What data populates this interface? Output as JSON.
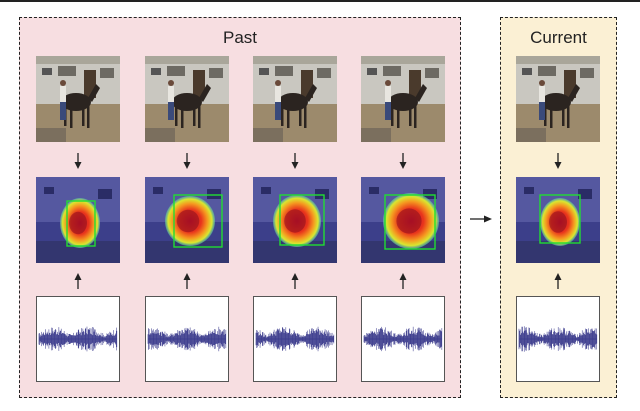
{
  "panels": {
    "past_label": "Past",
    "current_label": "Current"
  },
  "colors": {
    "past_bg": "#f7dee1",
    "current_bg": "#fbf0d4",
    "heatmap_base": "#3c3f8a",
    "waveform": "#3a3a8c",
    "detection_box": "#22dd33"
  },
  "icons": [
    "arrow-down-icon",
    "arrow-up-icon",
    "arrow-right-icon"
  ]
}
